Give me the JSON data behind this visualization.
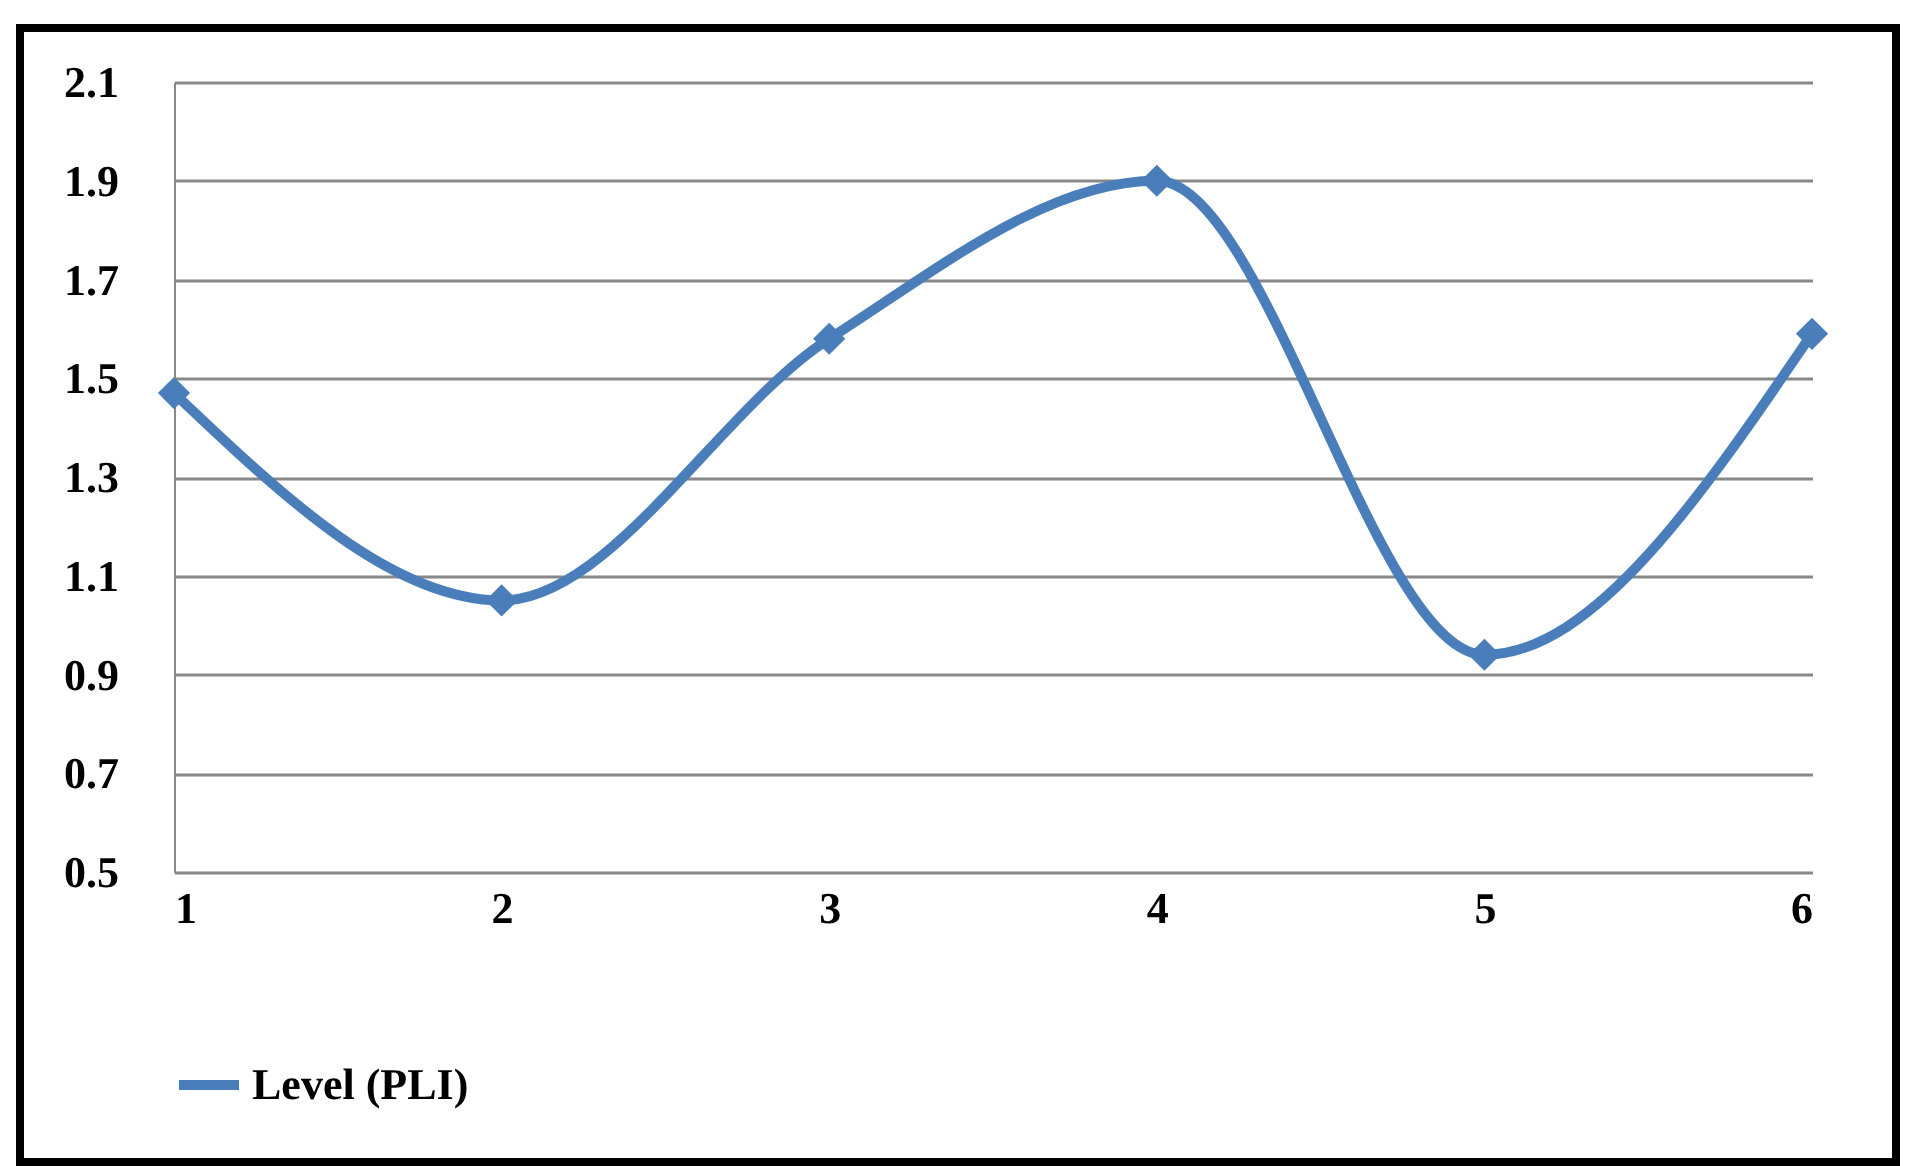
{
  "chart_data": {
    "type": "line",
    "x": [
      1,
      2,
      3,
      4,
      5,
      6
    ],
    "series": [
      {
        "name": "Level (PLI)",
        "color": "#4a7ebb",
        "values": [
          1.47,
          1.05,
          1.58,
          1.9,
          0.94,
          1.59
        ]
      }
    ],
    "xlim": [
      1,
      6
    ],
    "xticks": [
      1,
      2,
      3,
      4,
      5,
      6
    ],
    "ylim": [
      0.5,
      2.1
    ],
    "yticks": [
      0.5,
      0.7,
      0.9,
      1.1,
      1.3,
      1.5,
      1.7,
      1.9,
      2.1
    ],
    "grid": "y",
    "legend": "bottom",
    "marker": "diamond",
    "line_style": "solid"
  }
}
